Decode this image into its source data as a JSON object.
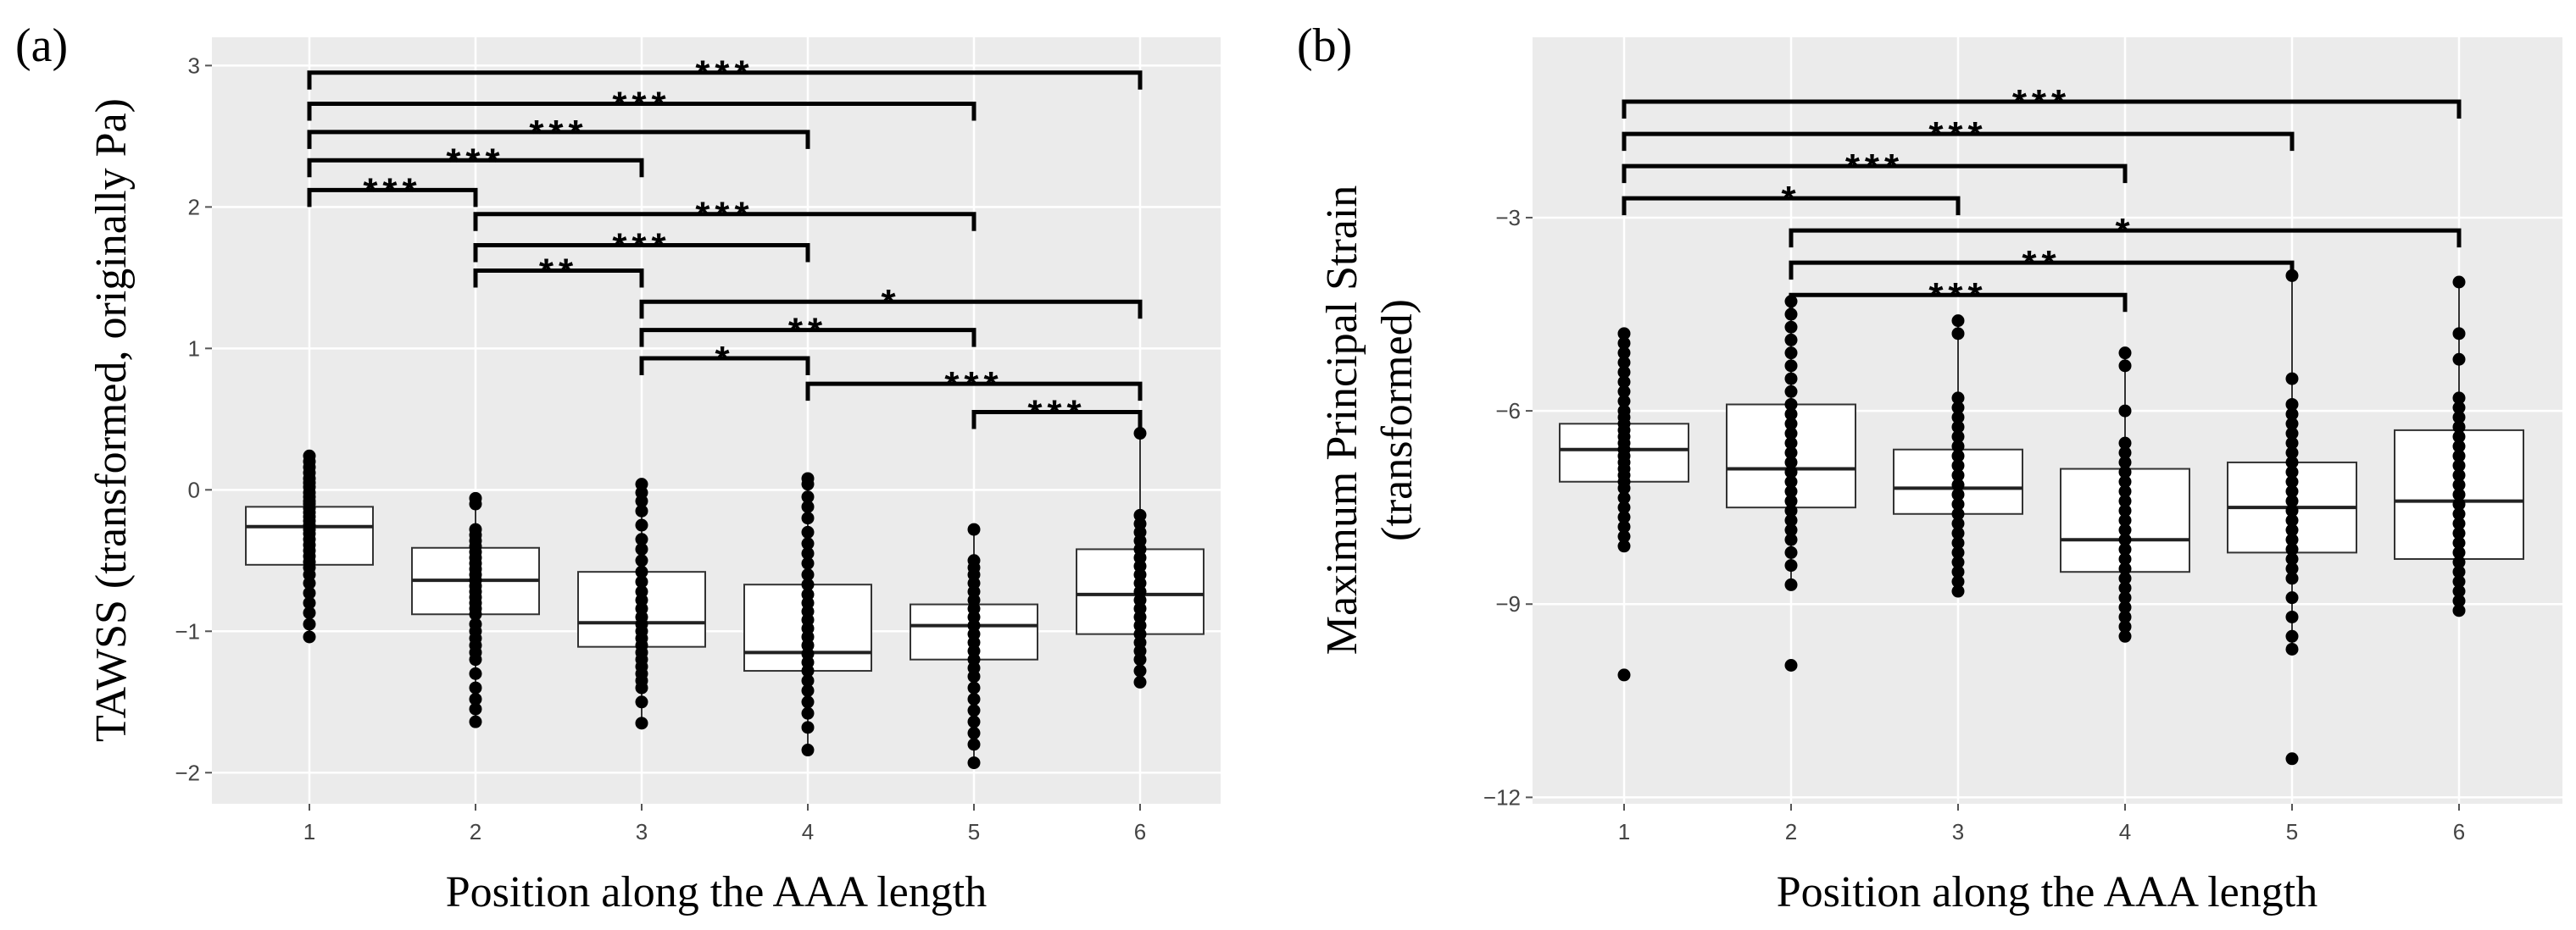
{
  "chart_data": [
    {
      "type": "box",
      "panel_label": "(a)",
      "xlabel": "Position along the AAA length",
      "ylabel": "TAWSS  (transformed, originally Pa)",
      "categories": [
        "1",
        "2",
        "3",
        "4",
        "5",
        "6"
      ],
      "yticks": [
        3,
        2,
        1,
        0,
        -1,
        -2
      ],
      "ytick_labels": [
        "3",
        "2",
        "1",
        "0",
        "−1",
        "−2"
      ],
      "ylim": [
        -2.22,
        3.2
      ],
      "grid": true,
      "boxes": [
        {
          "pos": 1,
          "q1": -0.53,
          "median": -0.26,
          "q3": -0.12,
          "whisker_low": -1.05,
          "whisker_high": 0.24,
          "points": [
            0.24,
            0.2,
            0.16,
            0.12,
            0.08,
            0.05,
            0.02,
            -0.02,
            -0.05,
            -0.08,
            -0.1,
            -0.13,
            -0.16,
            -0.19,
            -0.22,
            -0.25,
            -0.28,
            -0.31,
            -0.35,
            -0.39,
            -0.43,
            -0.47,
            -0.51,
            -0.55,
            -0.6,
            -0.66,
            -0.73,
            -0.8,
            -0.87,
            -0.95,
            -1.04
          ]
        },
        {
          "pos": 2,
          "q1": -0.88,
          "median": -0.64,
          "q3": -0.41,
          "whisker_low": -1.65,
          "whisker_high": -0.06,
          "points": [
            -0.06,
            -0.1,
            -0.28,
            -0.32,
            -0.36,
            -0.4,
            -0.44,
            -0.48,
            -0.52,
            -0.56,
            -0.6,
            -0.64,
            -0.68,
            -0.72,
            -0.76,
            -0.8,
            -0.84,
            -0.88,
            -0.95,
            -1.0,
            -1.05,
            -1.1,
            -1.15,
            -1.2,
            -1.3,
            -1.4,
            -1.48,
            -1.55,
            -1.64
          ]
        },
        {
          "pos": 3,
          "q1": -1.11,
          "median": -0.94,
          "q3": -0.58,
          "whisker_low": -1.65,
          "whisker_high": 0.04,
          "points": [
            0.04,
            -0.02,
            -0.08,
            -0.15,
            -0.25,
            -0.35,
            -0.42,
            -0.5,
            -0.58,
            -0.65,
            -0.72,
            -0.78,
            -0.84,
            -0.9,
            -0.95,
            -1.0,
            -1.05,
            -1.1,
            -1.15,
            -1.2,
            -1.25,
            -1.3,
            -1.35,
            -1.4,
            -1.5,
            -1.65
          ]
        },
        {
          "pos": 4,
          "q1": -1.28,
          "median": -1.15,
          "q3": -0.67,
          "whisker_low": -1.85,
          "whisker_high": 0.08,
          "points": [
            0.08,
            0.04,
            -0.05,
            -0.12,
            -0.2,
            -0.3,
            -0.38,
            -0.45,
            -0.52,
            -0.6,
            -0.67,
            -0.74,
            -0.8,
            -0.86,
            -0.92,
            -0.98,
            -1.04,
            -1.1,
            -1.16,
            -1.22,
            -1.28,
            -1.35,
            -1.42,
            -1.5,
            -1.58,
            -1.68,
            -1.84
          ]
        },
        {
          "pos": 5,
          "q1": -1.2,
          "median": -0.96,
          "q3": -0.81,
          "whisker_low": -1.93,
          "whisker_high": -0.28,
          "points": [
            -0.28,
            -0.5,
            -0.55,
            -0.6,
            -0.66,
            -0.72,
            -0.78,
            -0.84,
            -0.9,
            -0.96,
            -1.02,
            -1.08,
            -1.14,
            -1.2,
            -1.26,
            -1.32,
            -1.4,
            -1.48,
            -1.56,
            -1.64,
            -1.72,
            -1.8,
            -1.93
          ]
        },
        {
          "pos": 6,
          "q1": -1.02,
          "median": -0.74,
          "q3": -0.42,
          "whisker_low": -1.38,
          "whisker_high": 0.4,
          "points": [
            0.4,
            -0.18,
            -0.24,
            -0.3,
            -0.36,
            -0.42,
            -0.48,
            -0.54,
            -0.6,
            -0.66,
            -0.72,
            -0.78,
            -0.84,
            -0.9,
            -0.96,
            -1.02,
            -1.08,
            -1.14,
            -1.2,
            -1.28,
            -1.36
          ]
        }
      ],
      "brackets": [
        {
          "from": 1,
          "to": 6,
          "y": 2.95,
          "label": "***"
        },
        {
          "from": 1,
          "to": 5,
          "y": 2.73,
          "label": "***"
        },
        {
          "from": 1,
          "to": 4,
          "y": 2.53,
          "label": "***"
        },
        {
          "from": 1,
          "to": 3,
          "y": 2.33,
          "label": "***"
        },
        {
          "from": 1,
          "to": 2,
          "y": 2.12,
          "label": "***"
        },
        {
          "from": 2,
          "to": 5,
          "y": 1.95,
          "label": "***"
        },
        {
          "from": 2,
          "to": 4,
          "y": 1.73,
          "label": "***"
        },
        {
          "from": 2,
          "to": 3,
          "y": 1.55,
          "label": "**"
        },
        {
          "from": 3,
          "to": 6,
          "y": 1.33,
          "label": "*"
        },
        {
          "from": 3,
          "to": 5,
          "y": 1.13,
          "label": "**"
        },
        {
          "from": 3,
          "to": 4,
          "y": 0.93,
          "label": "*"
        },
        {
          "from": 4,
          "to": 6,
          "y": 0.75,
          "label": "***"
        },
        {
          "from": 5,
          "to": 6,
          "y": 0.55,
          "label": "***"
        }
      ]
    },
    {
      "type": "box",
      "panel_label": "(b)",
      "xlabel": "Position along the AAA length",
      "ylabel": "Maximum Principal Strain",
      "ylabel2": "(transformed)",
      "categories": [
        "1",
        "2",
        "3",
        "4",
        "5",
        "6"
      ],
      "yticks": [
        -3,
        -6,
        -9,
        -12
      ],
      "ytick_labels": [
        "−3",
        "−6",
        "−9",
        "−12"
      ],
      "ylim": [
        -12.1,
        -0.2
      ],
      "grid": true,
      "boxes": [
        {
          "pos": 1,
          "q1": -7.1,
          "median": -6.6,
          "q3": -6.2,
          "whisker_low": -8.1,
          "whisker_high": -4.8,
          "points": [
            -4.8,
            -4.95,
            -5.1,
            -5.25,
            -5.4,
            -5.55,
            -5.7,
            -5.85,
            -6.0,
            -6.1,
            -6.2,
            -6.3,
            -6.4,
            -6.5,
            -6.6,
            -6.7,
            -6.8,
            -6.9,
            -7.0,
            -7.1,
            -7.2,
            -7.35,
            -7.5,
            -7.65,
            -7.8,
            -7.95,
            -8.1,
            -10.1
          ]
        },
        {
          "pos": 2,
          "q1": -7.5,
          "median": -6.9,
          "q3": -5.9,
          "whisker_low": -8.7,
          "whisker_high": -4.3,
          "points": [
            -4.3,
            -4.5,
            -4.7,
            -4.9,
            -5.1,
            -5.3,
            -5.5,
            -5.7,
            -5.9,
            -6.05,
            -6.2,
            -6.35,
            -6.5,
            -6.65,
            -6.8,
            -6.95,
            -7.1,
            -7.25,
            -7.4,
            -7.55,
            -7.7,
            -7.85,
            -8.0,
            -8.2,
            -8.4,
            -8.7,
            -9.95
          ]
        },
        {
          "pos": 3,
          "q1": -7.6,
          "median": -7.2,
          "q3": -6.6,
          "whisker_low": -8.8,
          "whisker_high": -4.6,
          "points": [
            -4.6,
            -4.8,
            -5.8,
            -5.95,
            -6.1,
            -6.25,
            -6.4,
            -6.55,
            -6.7,
            -6.85,
            -7.0,
            -7.15,
            -7.3,
            -7.45,
            -7.6,
            -7.75,
            -7.9,
            -8.05,
            -8.2,
            -8.35,
            -8.5,
            -8.65,
            -8.8
          ]
        },
        {
          "pos": 4,
          "q1": -8.5,
          "median": -8.0,
          "q3": -6.9,
          "whisker_low": -9.5,
          "whisker_high": -5.1,
          "points": [
            -5.1,
            -5.3,
            -6.0,
            -6.5,
            -6.65,
            -6.8,
            -6.95,
            -7.1,
            -7.25,
            -7.4,
            -7.55,
            -7.7,
            -7.85,
            -8.0,
            -8.15,
            -8.3,
            -8.45,
            -8.6,
            -8.75,
            -8.9,
            -9.05,
            -9.2,
            -9.35,
            -9.5
          ]
        },
        {
          "pos": 5,
          "q1": -8.2,
          "median": -7.5,
          "q3": -6.8,
          "whisker_low": -9.7,
          "whisker_high": -3.9,
          "points": [
            -3.9,
            -5.5,
            -5.9,
            -6.05,
            -6.2,
            -6.35,
            -6.5,
            -6.65,
            -6.8,
            -6.95,
            -7.1,
            -7.25,
            -7.4,
            -7.55,
            -7.7,
            -7.85,
            -8.0,
            -8.15,
            -8.3,
            -8.45,
            -8.6,
            -8.9,
            -9.2,
            -9.5,
            -9.7,
            -11.4
          ]
        },
        {
          "pos": 6,
          "q1": -8.3,
          "median": -7.4,
          "q3": -6.3,
          "whisker_low": -9.1,
          "whisker_high": -4.0,
          "points": [
            -4.0,
            -4.8,
            -5.2,
            -5.8,
            -5.95,
            -6.1,
            -6.25,
            -6.4,
            -6.55,
            -6.7,
            -6.85,
            -7.0,
            -7.15,
            -7.3,
            -7.45,
            -7.6,
            -7.75,
            -7.9,
            -8.05,
            -8.2,
            -8.35,
            -8.5,
            -8.65,
            -8.8,
            -8.95,
            -9.1
          ]
        }
      ],
      "brackets": [
        {
          "from": 1,
          "to": 6,
          "y": -1.2,
          "label": "***"
        },
        {
          "from": 1,
          "to": 5,
          "y": -1.7,
          "label": "***"
        },
        {
          "from": 1,
          "to": 4,
          "y": -2.2,
          "label": "***"
        },
        {
          "from": 1,
          "to": 3,
          "y": -2.7,
          "label": "*"
        },
        {
          "from": 2,
          "to": 6,
          "y": -3.2,
          "label": "*"
        },
        {
          "from": 2,
          "to": 5,
          "y": -3.7,
          "label": "**"
        },
        {
          "from": 2,
          "to": 4,
          "y": -4.2,
          "label": "***"
        }
      ]
    }
  ]
}
